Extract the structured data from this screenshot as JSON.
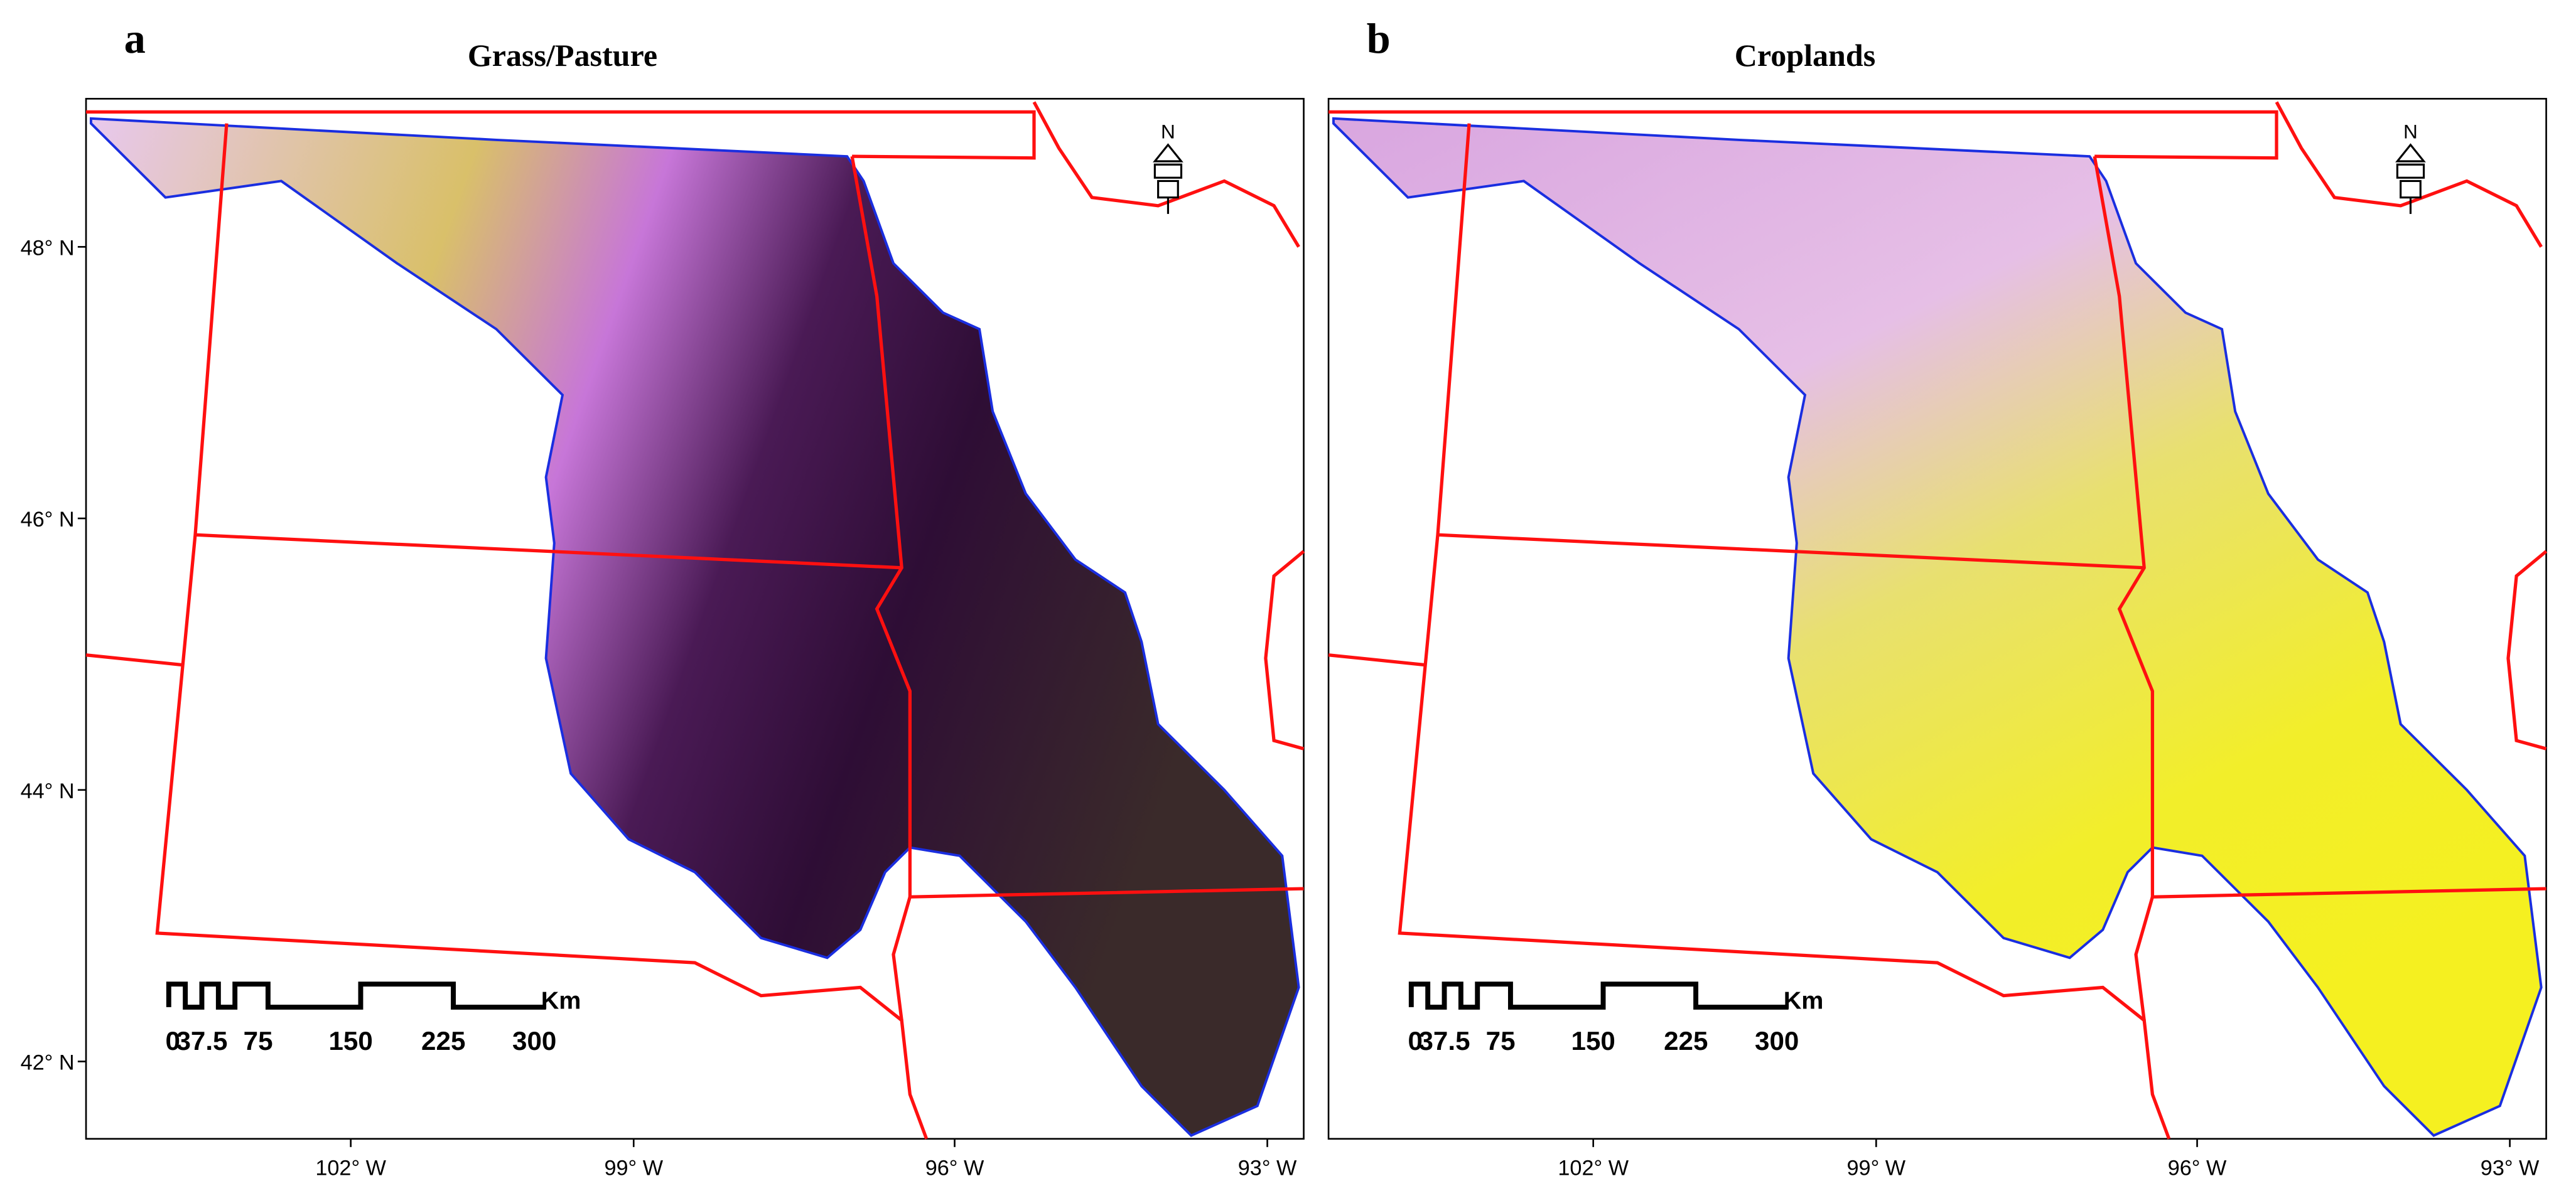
{
  "panels": [
    {
      "label": "a",
      "title": "Grass/Pasture",
      "north": "N",
      "scale_unit": "Km",
      "scale_labels": [
        "0",
        "37.5",
        "75",
        "150",
        "225",
        "300"
      ],
      "lat_labels": [
        "48° N",
        "46° N",
        "44° N",
        "42° N"
      ],
      "lon_labels": [
        "102° W",
        "99° W",
        "96° W",
        "93° W"
      ]
    },
    {
      "label": "b",
      "title": "Croplands",
      "north": "N",
      "scale_unit": "Km",
      "scale_labels": [
        "0",
        "37.5",
        "75",
        "150",
        "225",
        "300"
      ],
      "lon_labels": [
        "102° W",
        "99° W",
        "96° W",
        "93° W"
      ]
    }
  ]
}
